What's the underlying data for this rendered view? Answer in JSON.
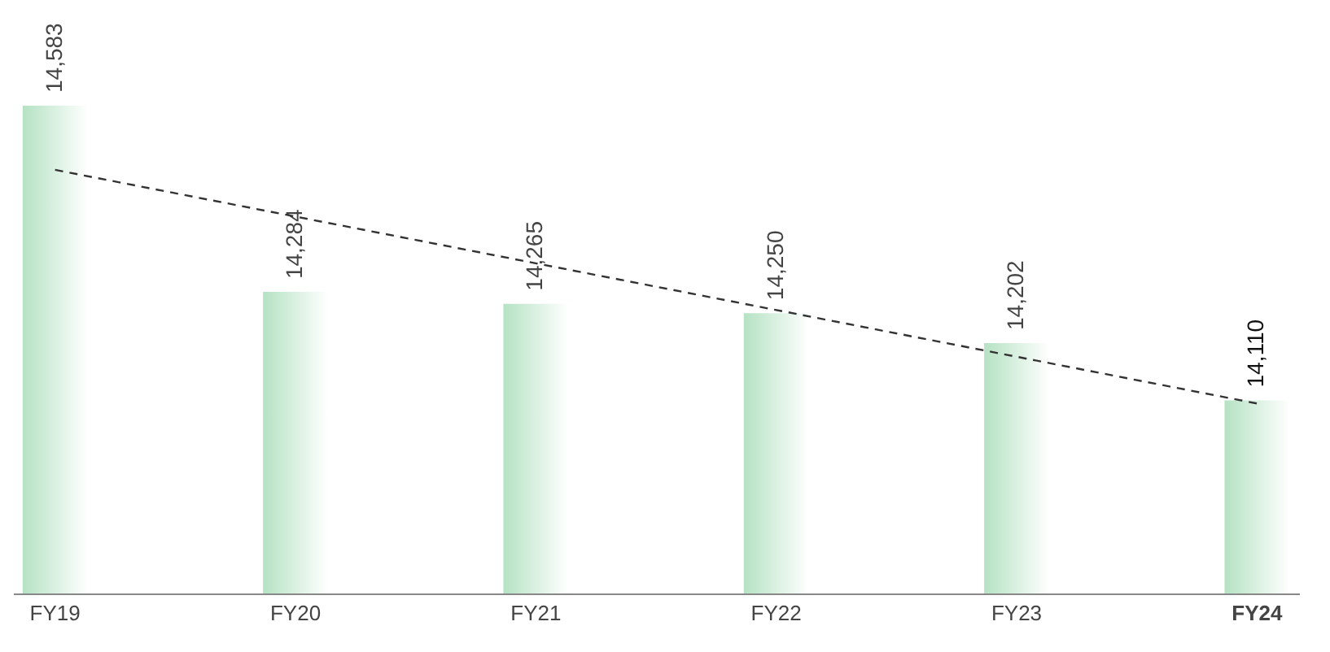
{
  "chart_data": {
    "type": "bar",
    "categories": [
      "FY19",
      "FY20",
      "FY21",
      "FY22",
      "FY23",
      "FY24"
    ],
    "series": [
      {
        "color": "#b5e2c3",
        "values": [
          14583,
          14284,
          14265,
          14250,
          14202,
          14110
        ],
        "value_labels": [
          "14,583",
          "14,284",
          "14,265",
          "14,250",
          "14,202",
          "14,110"
        ]
      },
      {
        "type": "line",
        "color": "#333333",
        "line_style": "dashed",
        "marker": "none",
        "x": [
          "FY19",
          "FY24"
        ],
        "values": [
          14480,
          14105
        ]
      }
    ],
    "ylim": [
      13800,
      14583
    ],
    "tick_labels": "x",
    "grid": false
  }
}
